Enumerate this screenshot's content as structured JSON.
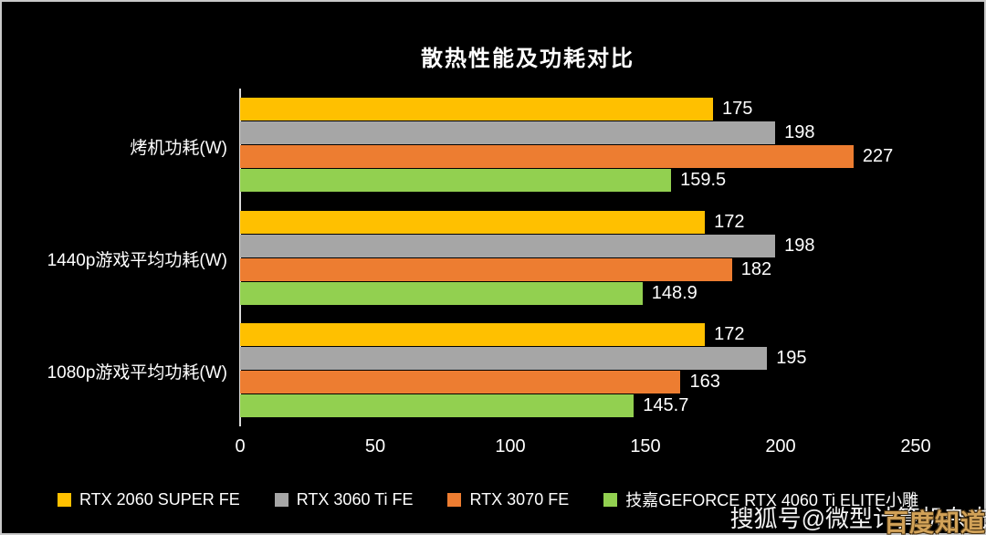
{
  "title": "散热性能及功耗对比",
  "chart_data": {
    "type": "bar",
    "orientation": "horizontal",
    "title": "散热性能及功耗对比",
    "categories": [
      "烤机功耗(W)",
      "1440p游戏平均功耗(W)",
      "1080p游戏平均功耗(W)"
    ],
    "series": [
      {
        "name": "RTX 2060 SUPER FE",
        "color": "#FFC000",
        "values": [
          175,
          172,
          172
        ]
      },
      {
        "name": "RTX 3060 Ti FE",
        "color": "#A6A6A6",
        "values": [
          198,
          198,
          195
        ]
      },
      {
        "name": "RTX 3070 FE",
        "color": "#ED7D31",
        "values": [
          227,
          182,
          163
        ]
      },
      {
        "name": "技嘉GEFORCE RTX 4060 Ti ELITE小雕",
        "color": "#92D050",
        "values": [
          159.5,
          148.9,
          145.7
        ]
      }
    ],
    "x_ticks": [
      "0",
      "50",
      "100",
      "150",
      "200",
      "250"
    ],
    "x_tick_values": [
      0,
      50,
      100,
      150,
      200,
      250
    ],
    "xlim": [
      0,
      250
    ],
    "xlabel": "",
    "ylabel": "",
    "grid": false,
    "legend_position": "bottom",
    "background_color": "#000000",
    "text_color": "#FFFFFF",
    "value_labels": true
  },
  "watermarks": {
    "sohu": "搜狐号@微型计算机杂志",
    "baidu": "百度知道",
    "baidu_color": "#D2A258"
  }
}
